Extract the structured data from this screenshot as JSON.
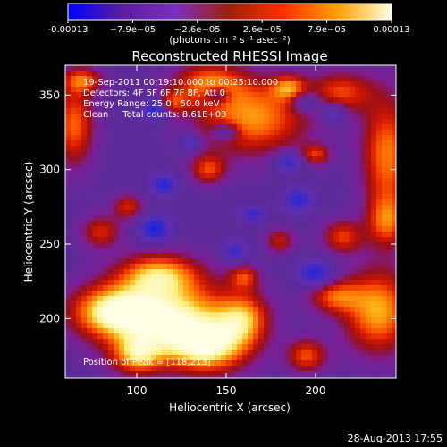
{
  "chart_data": {
    "type": "heatmap",
    "title": "Reconstructed RHESSI Image",
    "xlabel": "Heliocentric X (arcsec)",
    "ylabel": "Heliocentric Y (arcsec)",
    "xlim": [
      60,
      245
    ],
    "ylim": [
      160,
      370
    ],
    "xticks": [
      "100",
      "150",
      "200"
    ],
    "xtick_values": [
      100,
      150,
      200
    ],
    "yticks": [
      "200",
      "250",
      "300",
      "350"
    ],
    "ytick_values": [
      200,
      250,
      300,
      350
    ],
    "colorbar": {
      "range": [
        -0.00013,
        0.00013
      ],
      "tick_labels": [
        "-0.00013",
        "−7.9e−05",
        "−2.6e−05",
        "2.6e−05",
        "7.9e−05",
        "0.00013"
      ],
      "units": "(photons cm⁻² s⁻¹ asec⁻²)",
      "colors": [
        "#0000ff",
        "#5a1e9e",
        "#7a2fbf",
        "#a0200a",
        "#ff3000",
        "#ffa000",
        "#ffffe0"
      ]
    },
    "annotations": {
      "time_range": "19-Sep-2011 00:19:10.000 to 00:25:10.000",
      "detectors": "Detectors: 4F 5F 6F 7F 8F, Att 0",
      "energy_range": "Energy Range: 25.0 - 50.0 keV",
      "method_counts": "Clean     Total counts: 8.61E+03",
      "peak": "Position of Peak = [118,213]"
    },
    "peak_position": [
      118,
      213
    ],
    "background_color": "#5a2a98",
    "blobs": [
      {
        "x": 118,
        "y": 200,
        "sx": 26,
        "sy": 18,
        "level": 1.0
      },
      {
        "x": 85,
        "y": 205,
        "sx": 16,
        "sy": 12,
        "level": 0.75
      },
      {
        "x": 140,
        "y": 180,
        "sx": 16,
        "sy": 12,
        "level": 0.8
      },
      {
        "x": 112,
        "y": 230,
        "sx": 16,
        "sy": 10,
        "level": 0.7
      },
      {
        "x": 160,
        "y": 200,
        "sx": 10,
        "sy": 12,
        "level": 0.6
      },
      {
        "x": 100,
        "y": 175,
        "sx": 10,
        "sy": 9,
        "level": 0.65
      },
      {
        "x": 165,
        "y": 335,
        "sx": 22,
        "sy": 18,
        "level": 0.75
      },
      {
        "x": 140,
        "y": 358,
        "sx": 14,
        "sy": 10,
        "level": 0.6
      },
      {
        "x": 65,
        "y": 330,
        "sx": 8,
        "sy": 20,
        "level": 0.65
      },
      {
        "x": 140,
        "y": 300,
        "sx": 7,
        "sy": 7,
        "level": 0.55
      },
      {
        "x": 200,
        "y": 310,
        "sx": 6,
        "sy": 5,
        "level": 0.5
      },
      {
        "x": 215,
        "y": 352,
        "sx": 12,
        "sy": 10,
        "level": 0.55
      },
      {
        "x": 240,
        "y": 310,
        "sx": 10,
        "sy": 28,
        "level": 0.7
      },
      {
        "x": 240,
        "y": 265,
        "sx": 8,
        "sy": 12,
        "level": 0.55
      },
      {
        "x": 215,
        "y": 255,
        "sx": 8,
        "sy": 8,
        "level": 0.55
      },
      {
        "x": 235,
        "y": 205,
        "sx": 14,
        "sy": 20,
        "level": 0.8
      },
      {
        "x": 210,
        "y": 215,
        "sx": 10,
        "sy": 8,
        "level": 0.55
      },
      {
        "x": 195,
        "y": 175,
        "sx": 8,
        "sy": 8,
        "level": 0.6
      },
      {
        "x": 160,
        "y": 228,
        "sx": 6,
        "sy": 6,
        "level": 0.5
      },
      {
        "x": 80,
        "y": 258,
        "sx": 8,
        "sy": 8,
        "level": 0.5
      },
      {
        "x": 180,
        "y": 252,
        "sx": 6,
        "sy": 6,
        "level": 0.45
      },
      {
        "x": 95,
        "y": 275,
        "sx": 6,
        "sy": 6,
        "level": 0.5
      },
      {
        "x": 120,
        "y": 345,
        "sx": 6,
        "sy": 6,
        "level": 0.45
      },
      {
        "x": 185,
        "y": 355,
        "sx": 7,
        "sy": 6,
        "level": 0.55
      },
      {
        "x": 70,
        "y": 360,
        "sx": 8,
        "sy": 6,
        "level": 0.55
      },
      {
        "x": 110,
        "y": 340,
        "sx": 5,
        "sy": 5,
        "level": -0.6
      },
      {
        "x": 145,
        "y": 350,
        "sx": 5,
        "sy": 4,
        "level": -0.5
      },
      {
        "x": 115,
        "y": 290,
        "sx": 5,
        "sy": 5,
        "level": -0.55
      },
      {
        "x": 150,
        "y": 325,
        "sx": 5,
        "sy": 4,
        "level": -0.5
      },
      {
        "x": 195,
        "y": 345,
        "sx": 6,
        "sy": 5,
        "level": -0.45
      },
      {
        "x": 185,
        "y": 305,
        "sx": 6,
        "sy": 5,
        "level": -0.55
      },
      {
        "x": 210,
        "y": 338,
        "sx": 5,
        "sy": 5,
        "level": -0.5
      },
      {
        "x": 110,
        "y": 260,
        "sx": 6,
        "sy": 6,
        "level": -0.65
      },
      {
        "x": 190,
        "y": 280,
        "sx": 6,
        "sy": 6,
        "level": -0.5
      },
      {
        "x": 200,
        "y": 230,
        "sx": 7,
        "sy": 6,
        "level": -0.6
      },
      {
        "x": 165,
        "y": 270,
        "sx": 5,
        "sy": 4,
        "level": -0.45
      },
      {
        "x": 130,
        "y": 318,
        "sx": 4,
        "sy": 4,
        "level": -0.45
      },
      {
        "x": 155,
        "y": 245,
        "sx": 5,
        "sy": 5,
        "level": -0.45
      }
    ]
  },
  "footer": {
    "timestamp": "28-Aug-2013 17:55"
  }
}
